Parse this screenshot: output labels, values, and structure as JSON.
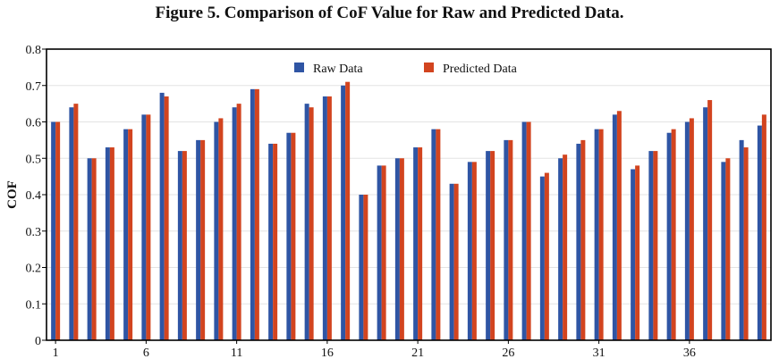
{
  "chart_data": {
    "type": "bar",
    "title": "Figure 5. Comparison of  CoF Value for Raw and Predicted Data.",
    "ylabel": "COF",
    "xlabel": "",
    "ylim": [
      0,
      0.8
    ],
    "yticks": [
      "0",
      "0.1",
      "0.2",
      "0.3",
      "0.4",
      "0.5",
      "0.6",
      "0.7",
      "0.8"
    ],
    "xtick_labels": [
      "1",
      "6",
      "11",
      "16",
      "21",
      "26",
      "31",
      "36"
    ],
    "x": [
      1,
      2,
      3,
      4,
      5,
      6,
      7,
      8,
      9,
      10,
      11,
      12,
      13,
      14,
      15,
      16,
      17,
      18,
      19,
      20,
      21,
      22,
      23,
      24,
      25,
      26,
      27,
      28,
      29,
      30,
      31,
      32,
      33,
      34,
      35,
      36,
      37,
      38,
      39,
      40
    ],
    "legend_position": "top-center",
    "grid": "horizontal",
    "series": [
      {
        "name": "Raw Data",
        "color": "#2f55a4",
        "values": [
          0.6,
          0.64,
          0.5,
          0.53,
          0.58,
          0.62,
          0.68,
          0.52,
          0.55,
          0.6,
          0.64,
          0.69,
          0.54,
          0.57,
          0.65,
          0.67,
          0.7,
          0.4,
          0.48,
          0.5,
          0.53,
          0.58,
          0.43,
          0.49,
          0.52,
          0.55,
          0.6,
          0.45,
          0.5,
          0.54,
          0.58,
          0.62,
          0.47,
          0.52,
          0.57,
          0.6,
          0.64,
          0.49,
          0.55,
          0.59
        ]
      },
      {
        "name": "Predicted Data",
        "color": "#d2441f",
        "values": [
          0.6,
          0.65,
          0.5,
          0.53,
          0.58,
          0.62,
          0.67,
          0.52,
          0.55,
          0.61,
          0.65,
          0.69,
          0.54,
          0.57,
          0.64,
          0.67,
          0.71,
          0.4,
          0.48,
          0.5,
          0.53,
          0.58,
          0.43,
          0.49,
          0.52,
          0.55,
          0.6,
          0.46,
          0.51,
          0.55,
          0.58,
          0.63,
          0.48,
          0.52,
          0.58,
          0.61,
          0.66,
          0.5,
          0.53,
          0.62
        ]
      }
    ]
  }
}
